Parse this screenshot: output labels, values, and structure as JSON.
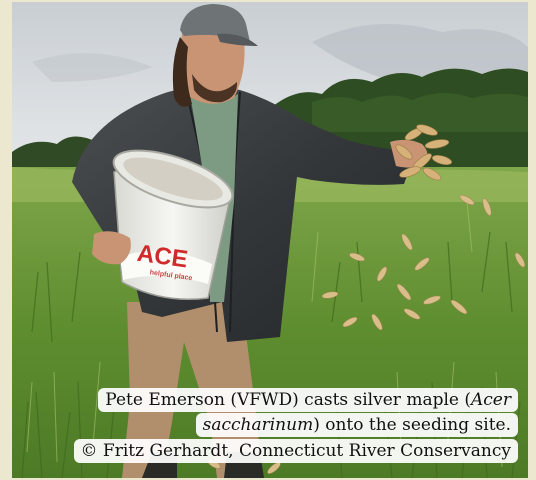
{
  "photo": {
    "bucket_brand": "ACE",
    "bucket_small_text": "helpful place"
  },
  "caption": {
    "part1": "Pete Emerson (VFWD) casts silver maple (",
    "species": "Acer saccharinum",
    "part2": ") onto the seeding site.",
    "credit": "© Fritz Gerhardt, Connecticut River Conservancy"
  }
}
